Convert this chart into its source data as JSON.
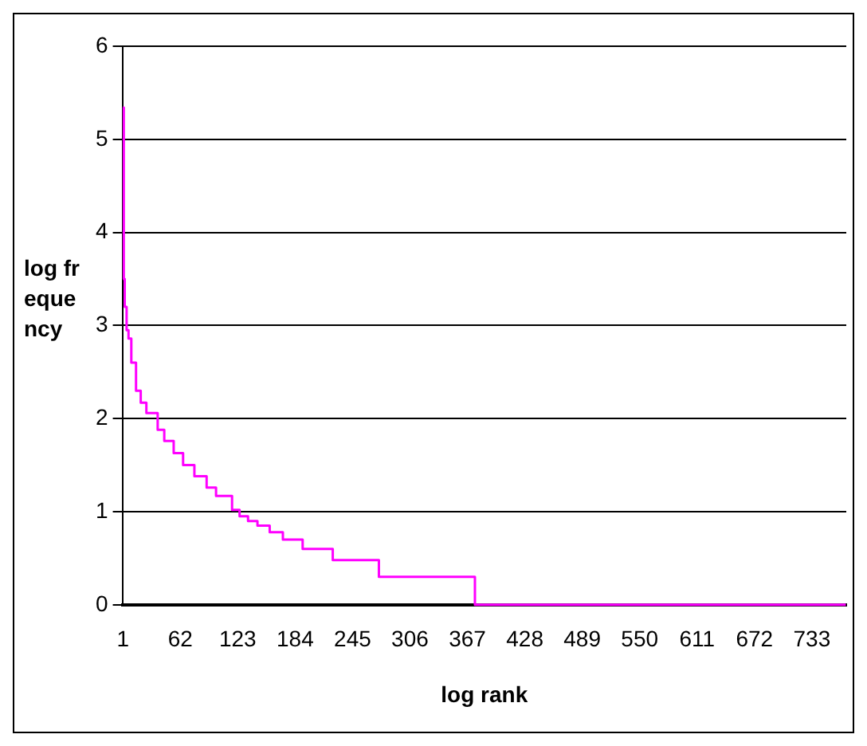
{
  "chart_data": {
    "type": "step",
    "xlabel": "log rank",
    "ylabel": "log frequency",
    "xlim": [
      0.5,
      769.5
    ],
    "xticks": [
      1,
      62,
      123,
      184,
      245,
      306,
      367,
      428,
      489,
      550,
      611,
      672,
      733
    ],
    "ylim": [
      0,
      6
    ],
    "yticks": [
      0,
      1,
      2,
      3,
      4,
      5,
      6
    ],
    "grid": "y",
    "legend": false,
    "marker": "none",
    "series": [
      {
        "color": "#ff00ff",
        "x": [
          1,
          2,
          3,
          5,
          7,
          10,
          15,
          20,
          26,
          38,
          45,
          55,
          65,
          77,
          90,
          100,
          117,
          125,
          134,
          144,
          157,
          171,
          192,
          224,
          273,
          375,
          769
        ],
        "values": [
          5.34,
          3.5,
          3.2,
          2.95,
          2.86,
          2.6,
          2.3,
          2.17,
          2.06,
          1.88,
          1.76,
          1.63,
          1.5,
          1.38,
          1.26,
          1.17,
          1.02,
          0.95,
          0.9,
          0.85,
          0.78,
          0.7,
          0.6,
          0.48,
          0.3,
          0,
          0
        ]
      }
    ]
  }
}
